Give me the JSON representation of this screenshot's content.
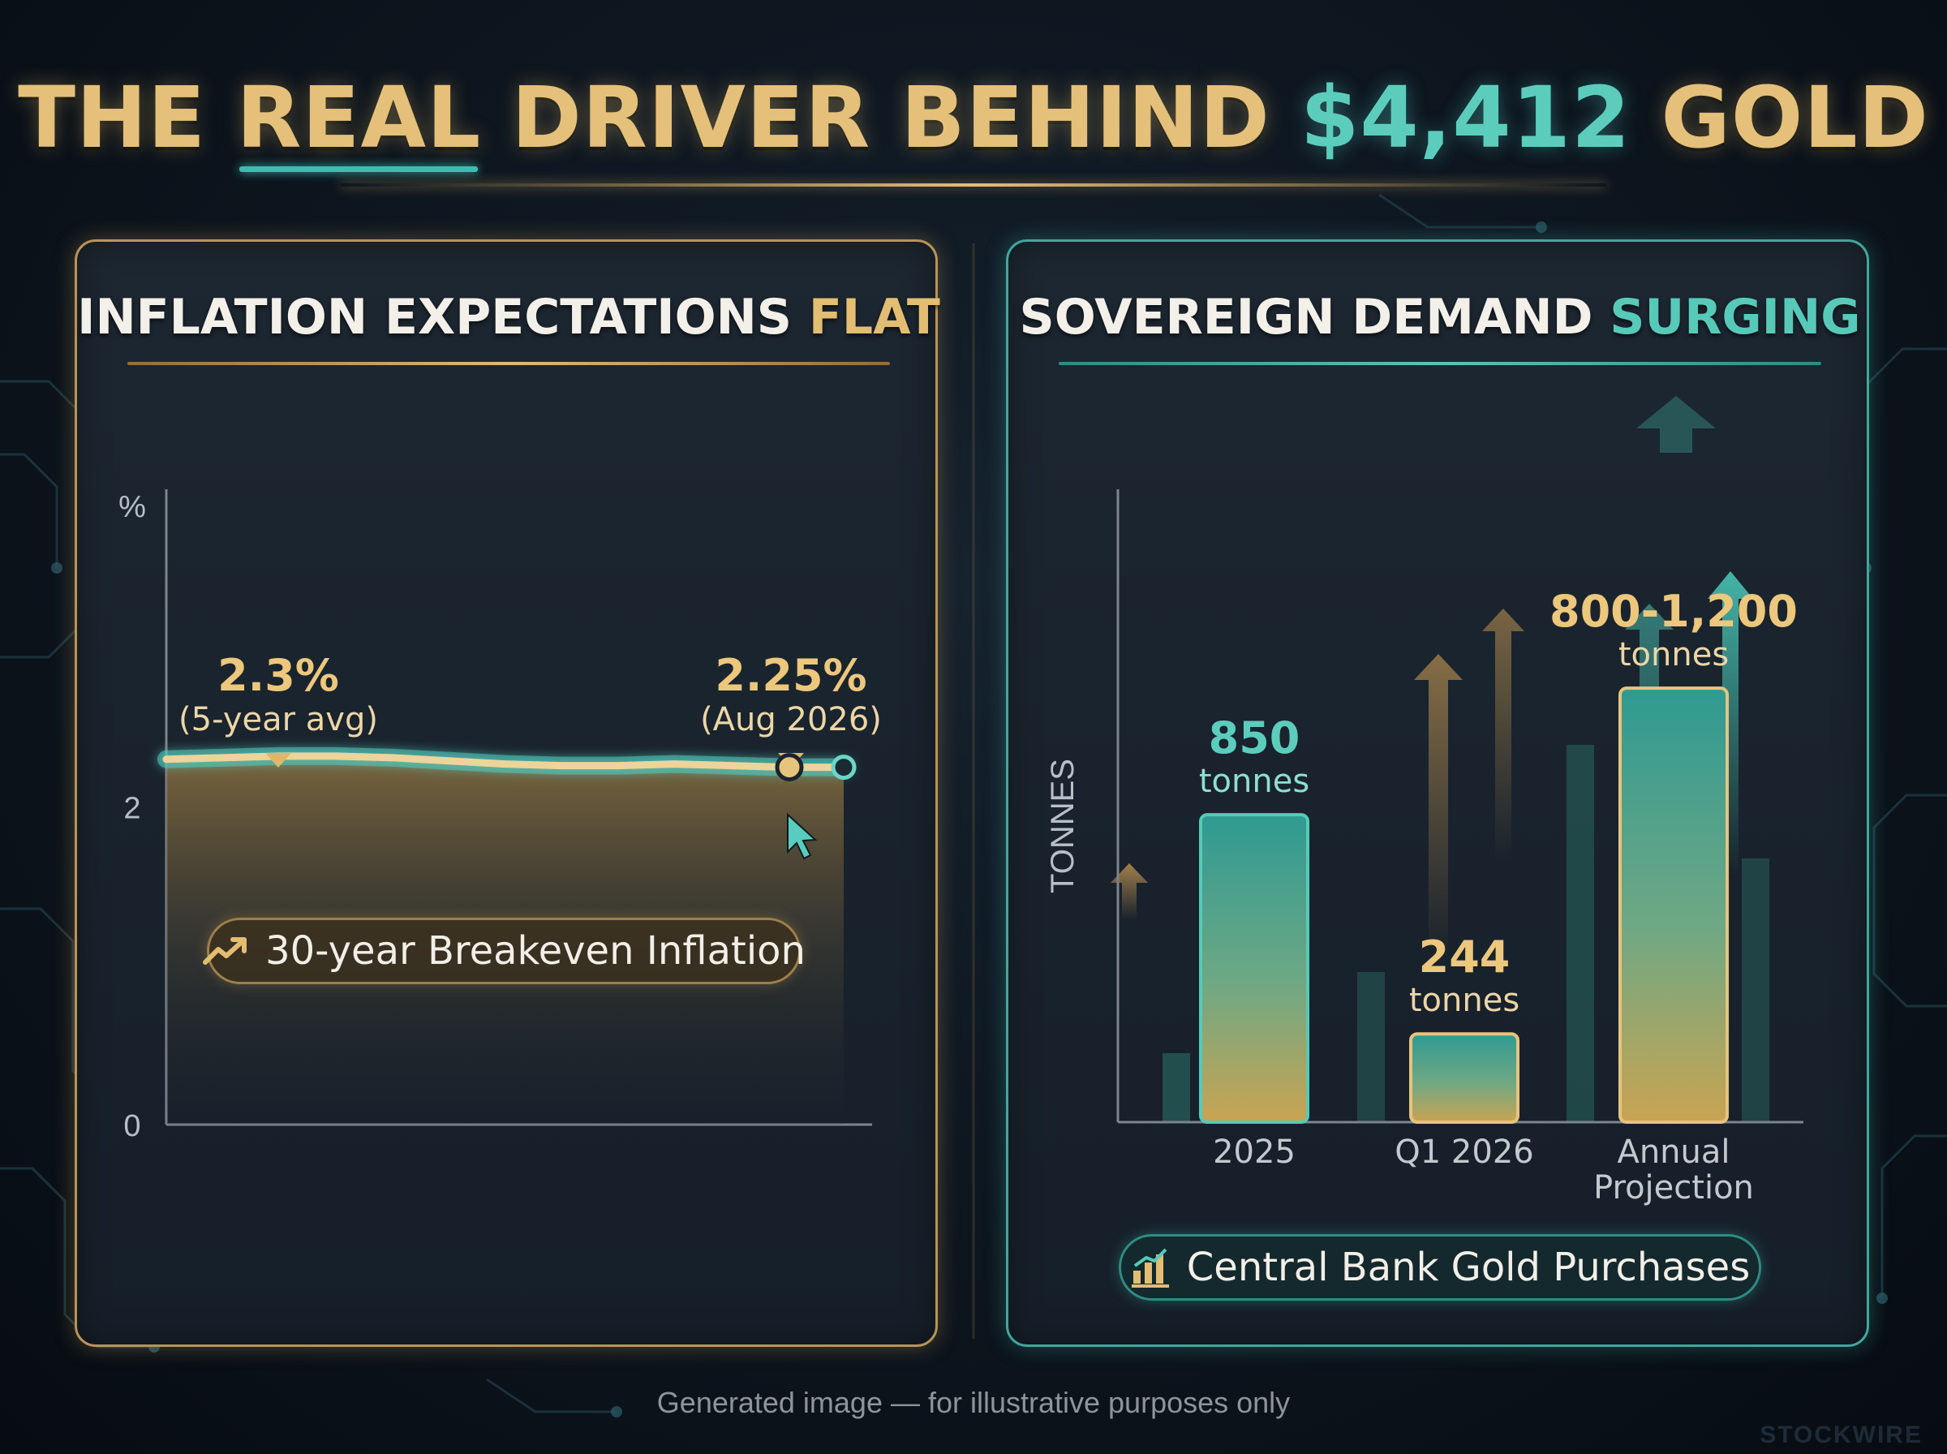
{
  "title": {
    "part1": "THE",
    "part2": "REAL",
    "part3": "DRIVER BEHIND",
    "part4": "$4,412",
    "part5": "GOLD"
  },
  "colors": {
    "gold": "#e2bd72",
    "teal": "#57c9b8",
    "background": "#0d151e"
  },
  "left_panel": {
    "title_main": "INFLATION EXPECTATIONS",
    "title_accent": "FLAT",
    "legend_label": "30-year Breakeven Inflation",
    "legend_icon": "trend-up-icon"
  },
  "right_panel": {
    "title_main": "SOVEREIGN DEMAND",
    "title_accent": "SURGING",
    "legend_label": "Central Bank Gold Purchases",
    "legend_icon": "bar-chart-icon"
  },
  "chart_data": [
    {
      "type": "line",
      "series": [
        {
          "name": "30-year Breakeven Inflation",
          "x": [
            0,
            1,
            2,
            3,
            4,
            5,
            6,
            7,
            8,
            9,
            10,
            11,
            12
          ],
          "y": [
            2.3,
            2.31,
            2.32,
            2.32,
            2.31,
            2.29,
            2.27,
            2.26,
            2.26,
            2.27,
            2.26,
            2.25,
            2.25
          ]
        }
      ],
      "yticks": [
        "%",
        "2",
        "0"
      ],
      "ylim": [
        0,
        4
      ],
      "annotations": [
        {
          "value": "2.3%",
          "label": "(5-year avg)"
        },
        {
          "value": "2.25%",
          "label": "(Aug 2026)"
        }
      ],
      "grid": false
    },
    {
      "type": "bar",
      "categories": [
        "2025",
        "Q1 2026",
        "Annual\nProjection"
      ],
      "values": [
        850,
        244,
        1200
      ],
      "value_labels": [
        "850",
        "244",
        "800-1,200"
      ],
      "unit_label": "tonnes",
      "ylabel": "TONNES",
      "ylim": [
        0,
        1750
      ]
    }
  ],
  "footer": {
    "caption": "Generated image — for illustrative purposes only",
    "watermark": "STOCKWIRE"
  }
}
